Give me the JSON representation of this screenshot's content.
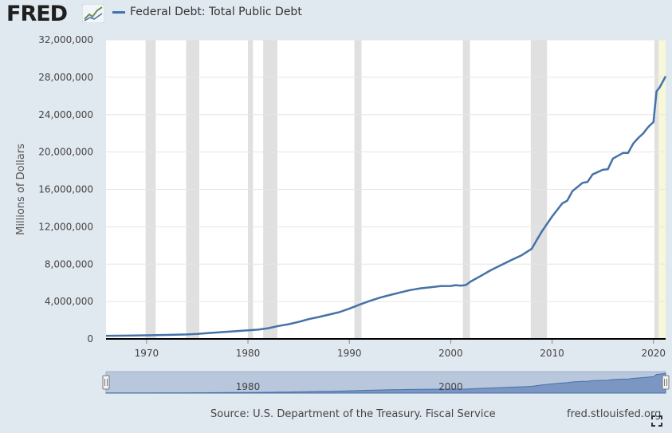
{
  "header": {
    "logo_text": "FRED",
    "logo_icon": "chart-line-icon",
    "series_label": "Federal Debt: Total Public Debt"
  },
  "colors": {
    "line": "#4572a7",
    "recession": "#e0e0e0",
    "forecast_band": "#f7f7d9",
    "navigator_fill": "#b9c7dd"
  },
  "footer": {
    "source": "Source: U.S. Department of the Treasury. Fiscal Service",
    "url": "fred.stlouisfed.org",
    "fullscreen_icon": "fullscreen-icon"
  },
  "chart_data": {
    "type": "line",
    "title": "",
    "xlabel": "",
    "ylabel": "Millions of Dollars",
    "xlim": [
      1966,
      2021.2
    ],
    "ylim": [
      0,
      32000000
    ],
    "yticks": [
      0,
      4000000,
      8000000,
      12000000,
      16000000,
      20000000,
      24000000,
      28000000,
      32000000
    ],
    "ytick_labels": [
      "0",
      "4,000,000",
      "8,000,000",
      "12,000,000",
      "16,000,000",
      "20,000,000",
      "24,000,000",
      "28,000,000",
      "32,000,000"
    ],
    "xticks": [
      1970,
      1980,
      1990,
      2000,
      2010,
      2020
    ],
    "xtick_labels": [
      "1970",
      "1980",
      "1990",
      "2000",
      "2010",
      "2020"
    ],
    "grid": true,
    "legend_position": "top-left",
    "recessions": [
      [
        1969.9,
        1970.9
      ],
      [
        1973.9,
        1975.2
      ],
      [
        1980.0,
        1980.5
      ],
      [
        1981.5,
        1982.9
      ],
      [
        1990.5,
        1991.2
      ],
      [
        2001.2,
        2001.9
      ],
      [
        2007.9,
        2009.5
      ],
      [
        2020.1,
        2020.5
      ]
    ],
    "highlight_band": [
      2020.1,
      2021.2
    ],
    "series": [
      {
        "name": "Federal Debt: Total Public Debt",
        "x": [
          1966,
          1968,
          1970,
          1972,
          1974,
          1975,
          1976,
          1978,
          1980,
          1981,
          1982,
          1983,
          1984,
          1985,
          1986,
          1987,
          1988,
          1989,
          1990,
          1991,
          1992,
          1993,
          1994,
          1995,
          1996,
          1997,
          1998,
          1999,
          2000,
          2000.5,
          2001,
          2001.5,
          2002,
          2003,
          2004,
          2005,
          2006,
          2007,
          2008,
          2008.5,
          2009,
          2010,
          2011,
          2011.5,
          2012,
          2013,
          2013.5,
          2014,
          2015,
          2015.5,
          2016,
          2017,
          2017.5,
          2018,
          2018.5,
          2019,
          2019.5,
          2020,
          2020.3,
          2020.6,
          2021,
          2021.2
        ],
        "values": [
          330000,
          350000,
          380000,
          430000,
          480000,
          530000,
          620000,
          770000,
          910000,
          990000,
          1140000,
          1380000,
          1570000,
          1820000,
          2120000,
          2350000,
          2600000,
          2860000,
          3230000,
          3660000,
          4060000,
          4410000,
          4690000,
          4970000,
          5220000,
          5410000,
          5530000,
          5660000,
          5670000,
          5750000,
          5700000,
          5770000,
          6150000,
          6760000,
          7380000,
          7910000,
          8450000,
          8950000,
          9650000,
          10600000,
          11500000,
          13100000,
          14500000,
          14800000,
          15800000,
          16700000,
          16800000,
          17600000,
          18100000,
          18150000,
          19300000,
          19900000,
          19900000,
          20900000,
          21500000,
          22000000,
          22700000,
          23200000,
          26500000,
          26900000,
          27700000,
          28100000
        ]
      }
    ],
    "navigator": {
      "tick_labels": [
        "1980",
        "2000"
      ],
      "tick_values": [
        1980,
        2000
      ]
    }
  }
}
